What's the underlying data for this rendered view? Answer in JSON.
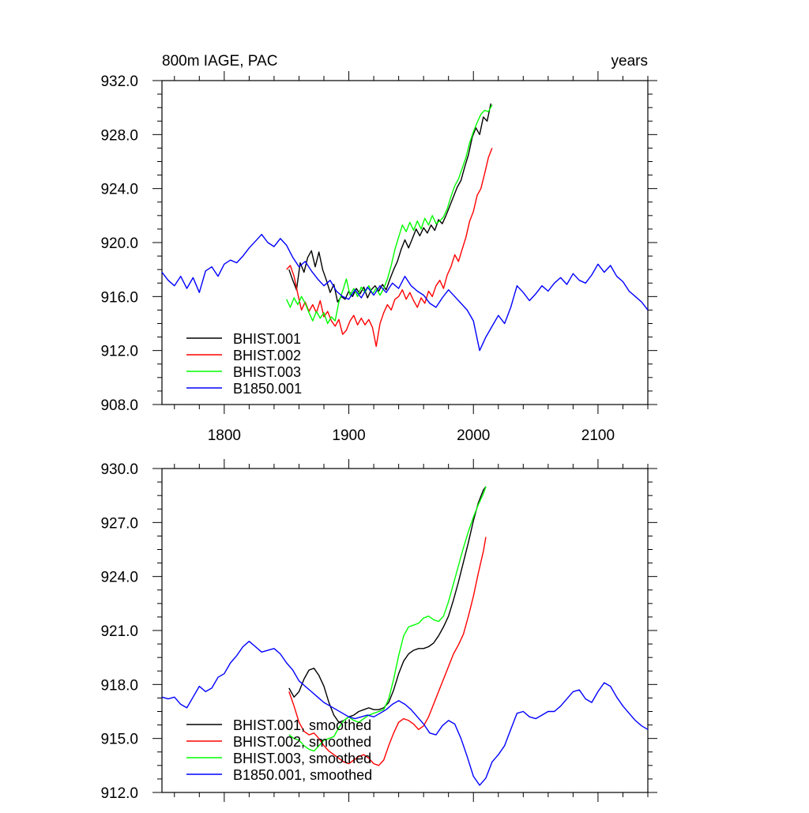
{
  "chart_data": [
    {
      "type": "line",
      "title": "800m IAGE, PAC",
      "title_right": "years",
      "xlim": [
        1750,
        2140
      ],
      "ylim": [
        908,
        932
      ],
      "xticks": [
        1800,
        1900,
        2000,
        2100
      ],
      "xtick_labels": [
        "1800",
        "1900",
        "2000",
        "2100"
      ],
      "yticks": [
        908,
        912,
        916,
        920,
        924,
        928,
        932
      ],
      "ytick_labels": [
        "908.0",
        "912.0",
        "916.0",
        "920.0",
        "924.0",
        "928.0",
        "932.0"
      ],
      "legend_position": "bottom-left",
      "grid": false,
      "series": [
        {
          "name": "BHIST.001",
          "color": "#000000",
          "x": [
            1852,
            1855,
            1858,
            1861,
            1864,
            1867,
            1870,
            1873,
            1876,
            1879,
            1882,
            1885,
            1888,
            1891,
            1894,
            1897,
            1900,
            1903,
            1906,
            1909,
            1912,
            1915,
            1918,
            1921,
            1924,
            1927,
            1930,
            1933,
            1936,
            1939,
            1942,
            1945,
            1948,
            1951,
            1954,
            1957,
            1960,
            1963,
            1966,
            1969,
            1972,
            1975,
            1978,
            1981,
            1984,
            1987,
            1990,
            1993,
            1996,
            1999,
            2002,
            2005,
            2008,
            2011,
            2014
          ],
          "y": [
            918.0,
            917.2,
            916.5,
            918.5,
            917.8,
            918.9,
            919.4,
            918.2,
            919.3,
            918.0,
            917.2,
            916.3,
            916.9,
            915.6,
            916.0,
            915.8,
            916.4,
            916.0,
            916.6,
            916.2,
            916.7,
            915.9,
            916.5,
            916.8,
            916.4,
            916.9,
            916.5,
            917.3,
            918.0,
            918.6,
            919.5,
            920.2,
            919.6,
            920.3,
            921.0,
            920.5,
            921.1,
            920.7,
            921.3,
            920.9,
            921.7,
            921.4,
            922.0,
            922.7,
            923.4,
            924.1,
            924.6,
            925.6,
            926.5,
            927.8,
            928.5,
            928.0,
            929.3,
            929.0,
            930.3
          ]
        },
        {
          "name": "BHIST.002",
          "color": "#ff0000",
          "x": [
            1850,
            1853,
            1856,
            1859,
            1862,
            1865,
            1868,
            1871,
            1874,
            1877,
            1880,
            1883,
            1886,
            1889,
            1892,
            1895,
            1898,
            1901,
            1904,
            1907,
            1910,
            1913,
            1916,
            1919,
            1922,
            1925,
            1928,
            1931,
            1934,
            1937,
            1940,
            1943,
            1946,
            1949,
            1952,
            1955,
            1958,
            1961,
            1964,
            1967,
            1970,
            1973,
            1976,
            1979,
            1982,
            1985,
            1988,
            1991,
            1994,
            1997,
            2000,
            2003,
            2006,
            2009,
            2012,
            2015
          ],
          "y": [
            918.0,
            918.3,
            917.5,
            916.2,
            915.0,
            915.6,
            914.9,
            915.4,
            914.8,
            915.7,
            914.5,
            914.9,
            914.2,
            913.8,
            914.3,
            913.2,
            913.5,
            914.2,
            914.6,
            913.9,
            914.4,
            913.9,
            914.3,
            913.7,
            912.3,
            914.0,
            914.8,
            915.4,
            915.0,
            915.8,
            916.0,
            916.5,
            915.8,
            916.3,
            915.7,
            915.2,
            915.9,
            915.5,
            916.4,
            916.0,
            916.8,
            917.2,
            916.6,
            917.6,
            918.2,
            919.1,
            918.6,
            919.5,
            920.4,
            921.6,
            922.3,
            923.5,
            924.0,
            925.1,
            926.3,
            927.0
          ]
        },
        {
          "name": "BHIST.003",
          "color": "#00ff00",
          "x": [
            1850,
            1853,
            1856,
            1859,
            1862,
            1865,
            1868,
            1871,
            1874,
            1877,
            1880,
            1883,
            1886,
            1889,
            1892,
            1895,
            1898,
            1901,
            1904,
            1907,
            1910,
            1913,
            1916,
            1919,
            1922,
            1925,
            1928,
            1931,
            1934,
            1937,
            1940,
            1943,
            1946,
            1949,
            1952,
            1955,
            1958,
            1961,
            1964,
            1967,
            1970,
            1973,
            1976,
            1979,
            1982,
            1985,
            1988,
            1991,
            1994,
            1997,
            2000,
            2003,
            2006,
            2009,
            2012,
            2015
          ],
          "y": [
            915.8,
            915.2,
            915.9,
            915.4,
            916.0,
            915.5,
            914.8,
            914.2,
            914.9,
            914.4,
            914.8,
            914.0,
            914.5,
            914.2,
            915.6,
            916.4,
            917.3,
            916.1,
            916.6,
            916.0,
            916.7,
            916.3,
            916.8,
            916.2,
            916.6,
            916.1,
            916.6,
            917.3,
            918.3,
            919.5,
            920.4,
            921.3,
            920.8,
            921.5,
            920.9,
            921.6,
            921.0,
            921.8,
            921.3,
            922.0,
            921.4,
            921.6,
            921.9,
            922.5,
            923.4,
            924.2,
            924.7,
            925.5,
            926.3,
            927.4,
            928.2,
            928.9,
            929.5,
            929.8,
            929.7,
            930.2
          ]
        },
        {
          "name": "B1850.001",
          "color": "#0000ff",
          "x": [
            1750,
            1755,
            1760,
            1765,
            1770,
            1775,
            1780,
            1785,
            1790,
            1795,
            1800,
            1805,
            1810,
            1815,
            1820,
            1825,
            1830,
            1835,
            1840,
            1845,
            1850,
            1855,
            1860,
            1865,
            1870,
            1875,
            1880,
            1885,
            1890,
            1895,
            1900,
            1905,
            1910,
            1915,
            1920,
            1925,
            1930,
            1935,
            1940,
            1945,
            1950,
            1955,
            1960,
            1965,
            1970,
            1975,
            1980,
            1985,
            1990,
            1995,
            2000,
            2005,
            2010,
            2015,
            2020,
            2025,
            2030,
            2035,
            2040,
            2045,
            2050,
            2055,
            2060,
            2065,
            2070,
            2075,
            2080,
            2085,
            2090,
            2095,
            2100,
            2105,
            2110,
            2115,
            2120,
            2125,
            2130,
            2135,
            2140
          ],
          "y": [
            917.8,
            917.2,
            916.8,
            917.5,
            916.6,
            917.4,
            916.3,
            917.9,
            918.2,
            917.5,
            918.4,
            918.7,
            918.5,
            919.0,
            919.6,
            920.1,
            920.6,
            920.0,
            919.7,
            920.3,
            919.8,
            918.9,
            918.2,
            918.6,
            917.9,
            917.3,
            916.8,
            917.2,
            916.4,
            916.0,
            915.8,
            916.5,
            915.9,
            916.7,
            916.1,
            916.8,
            916.3,
            917.0,
            916.6,
            917.5,
            916.8,
            916.4,
            916.1,
            915.5,
            915.2,
            915.9,
            916.5,
            916.0,
            915.5,
            915.0,
            914.2,
            912.0,
            913.0,
            913.8,
            914.6,
            914.0,
            915.2,
            916.8,
            916.3,
            915.7,
            916.2,
            916.8,
            916.4,
            917.0,
            917.4,
            916.9,
            917.7,
            917.2,
            917.0,
            917.6,
            918.4,
            917.8,
            918.3,
            917.5,
            917.1,
            916.4,
            916.0,
            915.6,
            915.0
          ]
        }
      ]
    },
    {
      "type": "line",
      "xlim": [
        1750,
        2140
      ],
      "ylim": [
        912,
        930
      ],
      "xticks": [
        1800,
        1900,
        2000,
        2100
      ],
      "yticks": [
        912,
        915,
        918,
        921,
        924,
        927,
        930
      ],
      "ytick_labels": [
        "912.0",
        "915.0",
        "918.0",
        "921.0",
        "924.0",
        "927.0",
        "930.0"
      ],
      "legend_position": "bottom-left",
      "grid": false,
      "series": [
        {
          "name": "BHIST.001, smoothed",
          "color": "#000000",
          "x": [
            1852,
            1856,
            1860,
            1864,
            1868,
            1872,
            1876,
            1880,
            1884,
            1888,
            1892,
            1896,
            1900,
            1904,
            1908,
            1912,
            1916,
            1920,
            1924,
            1928,
            1932,
            1936,
            1940,
            1944,
            1948,
            1952,
            1956,
            1960,
            1964,
            1968,
            1972,
            1976,
            1980,
            1984,
            1988,
            1992,
            1996,
            2000,
            2004,
            2008,
            2010
          ],
          "y": [
            917.8,
            917.3,
            917.6,
            918.3,
            918.8,
            918.9,
            918.5,
            917.9,
            917.0,
            916.3,
            915.9,
            916.0,
            916.2,
            916.3,
            916.5,
            916.6,
            916.7,
            916.6,
            916.6,
            916.7,
            917.0,
            917.7,
            918.6,
            919.3,
            919.7,
            919.9,
            920.0,
            920.0,
            920.1,
            920.3,
            920.7,
            921.2,
            921.8,
            922.7,
            923.7,
            924.8,
            925.9,
            927.1,
            928.1,
            928.8,
            929.0
          ]
        },
        {
          "name": "BHIST.002, smoothed",
          "color": "#ff0000",
          "x": [
            1852,
            1856,
            1860,
            1864,
            1868,
            1872,
            1876,
            1880,
            1884,
            1888,
            1892,
            1896,
            1900,
            1904,
            1908,
            1912,
            1916,
            1920,
            1924,
            1928,
            1932,
            1936,
            1940,
            1944,
            1948,
            1952,
            1956,
            1960,
            1964,
            1968,
            1972,
            1976,
            1980,
            1984,
            1988,
            1992,
            1996,
            2000,
            2004,
            2008,
            2010
          ],
          "y": [
            917.6,
            916.8,
            915.9,
            915.4,
            915.2,
            915.3,
            915.0,
            914.6,
            914.3,
            914.1,
            913.9,
            913.7,
            913.6,
            913.8,
            914.0,
            914.1,
            913.9,
            913.6,
            913.5,
            913.8,
            914.6,
            915.3,
            915.9,
            916.1,
            916.0,
            915.8,
            915.5,
            915.7,
            916.2,
            916.9,
            917.6,
            918.3,
            919.0,
            919.7,
            920.2,
            920.8,
            921.8,
            922.9,
            924.2,
            925.4,
            926.2
          ]
        },
        {
          "name": "BHIST.003, smoothed",
          "color": "#00ff00",
          "x": [
            1852,
            1856,
            1860,
            1864,
            1868,
            1872,
            1876,
            1880,
            1884,
            1888,
            1892,
            1896,
            1900,
            1904,
            1908,
            1912,
            1916,
            1920,
            1924,
            1928,
            1932,
            1936,
            1940,
            1944,
            1948,
            1952,
            1956,
            1960,
            1964,
            1968,
            1972,
            1976,
            1980,
            1984,
            1988,
            1992,
            1996,
            2000,
            2004,
            2008,
            2010
          ],
          "y": [
            915.2,
            915.0,
            914.9,
            914.6,
            914.4,
            914.3,
            914.6,
            914.9,
            915.0,
            915.1,
            915.6,
            916.0,
            916.2,
            916.0,
            915.9,
            916.1,
            916.3,
            916.4,
            916.5,
            916.6,
            917.2,
            918.3,
            919.6,
            920.7,
            921.2,
            921.3,
            921.4,
            921.7,
            921.8,
            921.6,
            921.5,
            921.8,
            922.6,
            923.6,
            924.6,
            925.6,
            926.5,
            927.3,
            928.0,
            928.6,
            929.0
          ]
        },
        {
          "name": "B1850.001, smoothed",
          "color": "#0000ff",
          "x": [
            1750,
            1755,
            1760,
            1765,
            1770,
            1775,
            1780,
            1785,
            1790,
            1795,
            1800,
            1805,
            1810,
            1815,
            1820,
            1825,
            1830,
            1835,
            1840,
            1845,
            1850,
            1855,
            1860,
            1865,
            1870,
            1875,
            1880,
            1885,
            1890,
            1895,
            1900,
            1905,
            1910,
            1915,
            1920,
            1925,
            1930,
            1935,
            1940,
            1945,
            1950,
            1955,
            1960,
            1965,
            1970,
            1975,
            1980,
            1985,
            1990,
            1995,
            2000,
            2005,
            2010,
            2015,
            2020,
            2025,
            2030,
            2035,
            2040,
            2045,
            2050,
            2055,
            2060,
            2065,
            2070,
            2075,
            2080,
            2085,
            2090,
            2095,
            2100,
            2105,
            2110,
            2115,
            2120,
            2125,
            2130,
            2135,
            2140
          ],
          "y": [
            917.3,
            917.2,
            917.3,
            916.9,
            916.7,
            917.3,
            917.9,
            917.6,
            917.8,
            918.4,
            918.6,
            919.2,
            919.6,
            920.1,
            920.4,
            920.1,
            919.8,
            919.9,
            920.0,
            919.7,
            919.2,
            918.8,
            918.2,
            917.9,
            917.6,
            917.3,
            917.0,
            916.8,
            916.6,
            916.4,
            916.2,
            916.1,
            916.2,
            916.3,
            916.2,
            916.4,
            916.6,
            916.9,
            917.1,
            916.9,
            916.6,
            916.2,
            915.8,
            915.3,
            915.2,
            915.7,
            916.0,
            915.8,
            915.0,
            914.0,
            912.9,
            912.4,
            912.8,
            913.7,
            914.1,
            914.6,
            915.5,
            916.4,
            916.5,
            916.2,
            916.1,
            916.3,
            916.5,
            916.5,
            916.8,
            917.2,
            917.6,
            917.7,
            917.2,
            917.0,
            917.6,
            918.1,
            917.9,
            917.3,
            916.8,
            916.4,
            916.0,
            915.7,
            915.5
          ]
        }
      ]
    }
  ]
}
